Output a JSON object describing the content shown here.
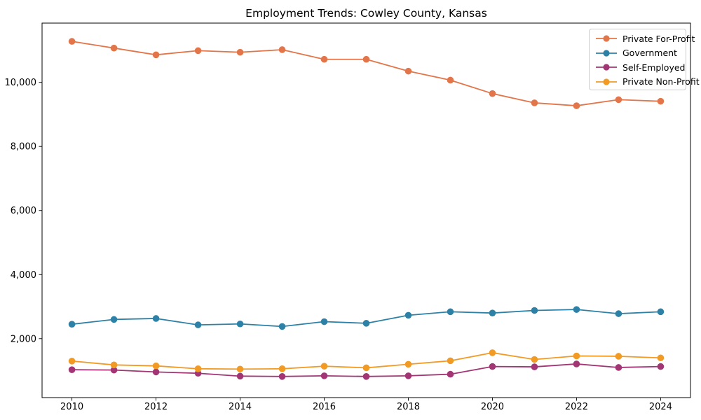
{
  "page": {
    "title": "Employment Trends: Cowley County, Kansas"
  },
  "chart_data": {
    "type": "line",
    "title": "Employment Trends: Cowley County, Kansas",
    "xlabel": "",
    "ylabel": "",
    "grid": false,
    "legend_position": "upper right",
    "x": [
      2010,
      2011,
      2012,
      2013,
      2014,
      2015,
      2016,
      2017,
      2018,
      2019,
      2020,
      2021,
      2022,
      2023,
      2024
    ],
    "series": [
      {
        "name": "Private For-Profit",
        "color": "#e2764a",
        "values": [
          11280,
          11070,
          10860,
          10990,
          10940,
          11020,
          10720,
          10720,
          10350,
          10070,
          9650,
          9360,
          9270,
          9460,
          9410
        ]
      },
      {
        "name": "Government",
        "color": "#2e81a6",
        "values": [
          2450,
          2600,
          2630,
          2430,
          2460,
          2380,
          2530,
          2480,
          2730,
          2840,
          2800,
          2880,
          2910,
          2780,
          2840
        ]
      },
      {
        "name": "Self-Employed",
        "color": "#a23574",
        "values": [
          1030,
          1020,
          960,
          920,
          830,
          820,
          840,
          820,
          840,
          890,
          1130,
          1120,
          1210,
          1100,
          1130
        ]
      },
      {
        "name": "Private Non-Profit",
        "color": "#f19b25",
        "values": [
          1300,
          1180,
          1150,
          1060,
          1050,
          1060,
          1140,
          1090,
          1200,
          1310,
          1560,
          1350,
          1460,
          1450,
          1400
        ]
      }
    ],
    "x_tick_values": [
      2010,
      2012,
      2014,
      2016,
      2018,
      2020,
      2022,
      2024
    ],
    "x_tick_labels": [
      "2010",
      "2012",
      "2014",
      "2016",
      "2018",
      "2020",
      "2022",
      "2024"
    ],
    "y_tick_values": [
      2000,
      4000,
      6000,
      8000,
      10000
    ],
    "y_tick_labels": [
      "2,000",
      "4,000",
      "6,000",
      "8,000",
      "10,000"
    ],
    "xlim": [
      2009.29,
      2024.71
    ],
    "ylim": [
      160,
      11850
    ]
  }
}
